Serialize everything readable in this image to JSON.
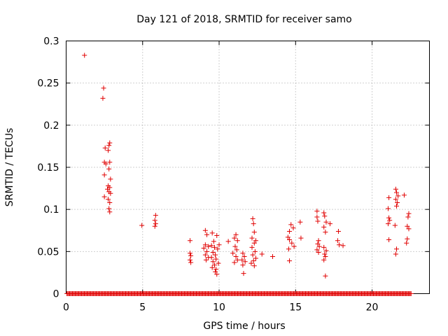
{
  "chart_data": {
    "type": "scatter",
    "title": "Day 121 of 2018, SRMTID for receiver samo",
    "xlabel": "GPS time / hours",
    "ylabel": "SRMTID / TECUs",
    "xlim": [
      0,
      23.75
    ],
    "ylim": [
      0,
      0.3
    ],
    "x_ticks": [
      0,
      5,
      10,
      15,
      20
    ],
    "x_tick_labels": [
      "0",
      "5",
      "10",
      "15",
      "20"
    ],
    "y_ticks": [
      0,
      0.05,
      0.1,
      0.15,
      0.2,
      0.25,
      0.3
    ],
    "y_tick_labels": [
      "0",
      "0.05",
      "0.1",
      "0.15",
      "0.2",
      "0.25",
      "0.3"
    ],
    "grid": true,
    "marker": "plus",
    "color": "#e00000",
    "series": [
      {
        "name": "SRMTID",
        "points": [
          [
            1.2,
            0.283
          ],
          [
            2.45,
            0.244
          ],
          [
            2.4,
            0.232
          ],
          [
            2.85,
            0.179
          ],
          [
            2.8,
            0.176
          ],
          [
            2.55,
            0.173
          ],
          [
            2.75,
            0.17
          ],
          [
            2.5,
            0.156
          ],
          [
            2.85,
            0.156
          ],
          [
            2.6,
            0.154
          ],
          [
            2.8,
            0.148
          ],
          [
            2.5,
            0.141
          ],
          [
            2.9,
            0.136
          ],
          [
            2.75,
            0.128
          ],
          [
            2.85,
            0.126
          ],
          [
            2.7,
            0.124
          ],
          [
            2.8,
            0.121
          ],
          [
            2.9,
            0.119
          ],
          [
            2.5,
            0.115
          ],
          [
            2.75,
            0.112
          ],
          [
            2.85,
            0.108
          ],
          [
            2.8,
            0.101
          ],
          [
            2.85,
            0.097
          ],
          [
            4.95,
            0.081
          ],
          [
            5.85,
            0.093
          ],
          [
            5.8,
            0.087
          ],
          [
            5.85,
            0.083
          ],
          [
            5.8,
            0.08
          ],
          [
            8.1,
            0.063
          ],
          [
            8.1,
            0.048
          ],
          [
            8.15,
            0.045
          ],
          [
            8.1,
            0.04
          ],
          [
            8.15,
            0.037
          ],
          [
            9.1,
            0.075
          ],
          [
            9.2,
            0.07
          ],
          [
            9.1,
            0.058
          ],
          [
            9.3,
            0.056
          ],
          [
            9.0,
            0.054
          ],
          [
            9.2,
            0.05
          ],
          [
            9.1,
            0.046
          ],
          [
            9.3,
            0.043
          ],
          [
            9.15,
            0.04
          ],
          [
            9.55,
            0.072
          ],
          [
            9.85,
            0.069
          ],
          [
            9.5,
            0.057
          ],
          [
            9.7,
            0.055
          ],
          [
            9.9,
            0.053
          ],
          [
            9.6,
            0.049
          ],
          [
            9.75,
            0.046
          ],
          [
            9.5,
            0.043
          ],
          [
            9.8,
            0.041
          ],
          [
            9.6,
            0.038
          ],
          [
            9.95,
            0.036
          ],
          [
            9.7,
            0.034
          ],
          [
            9.55,
            0.031
          ],
          [
            9.8,
            0.029
          ],
          [
            9.75,
            0.026
          ],
          [
            9.85,
            0.023
          ],
          [
            9.65,
            0.062
          ],
          [
            10.0,
            0.058
          ],
          [
            10.6,
            0.062
          ],
          [
            11.0,
            0.066
          ],
          [
            11.1,
            0.07
          ],
          [
            11.2,
            0.063
          ],
          [
            11.05,
            0.056
          ],
          [
            11.15,
            0.052
          ],
          [
            10.9,
            0.048
          ],
          [
            11.1,
            0.044
          ],
          [
            11.2,
            0.04
          ],
          [
            11.0,
            0.037
          ],
          [
            11.55,
            0.048
          ],
          [
            11.65,
            0.044
          ],
          [
            11.5,
            0.04
          ],
          [
            11.7,
            0.038
          ],
          [
            11.55,
            0.034
          ],
          [
            11.6,
            0.024
          ],
          [
            12.2,
            0.089
          ],
          [
            12.25,
            0.083
          ],
          [
            12.3,
            0.073
          ],
          [
            12.15,
            0.066
          ],
          [
            12.4,
            0.063
          ],
          [
            12.3,
            0.06
          ],
          [
            12.15,
            0.055
          ],
          [
            12.35,
            0.05
          ],
          [
            12.2,
            0.046
          ],
          [
            12.4,
            0.042
          ],
          [
            12.25,
            0.039
          ],
          [
            12.1,
            0.036
          ],
          [
            12.3,
            0.033
          ],
          [
            12.8,
            0.047
          ],
          [
            13.5,
            0.044
          ],
          [
            14.5,
            0.067
          ],
          [
            14.6,
            0.074
          ],
          [
            14.7,
            0.082
          ],
          [
            14.85,
            0.078
          ],
          [
            14.6,
            0.064
          ],
          [
            14.75,
            0.06
          ],
          [
            14.9,
            0.056
          ],
          [
            14.55,
            0.053
          ],
          [
            14.6,
            0.039
          ],
          [
            15.3,
            0.085
          ],
          [
            15.35,
            0.066
          ],
          [
            16.4,
            0.098
          ],
          [
            16.4,
            0.091
          ],
          [
            16.45,
            0.086
          ],
          [
            16.5,
            0.063
          ],
          [
            16.45,
            0.059
          ],
          [
            16.55,
            0.056
          ],
          [
            16.4,
            0.052
          ],
          [
            16.5,
            0.049
          ],
          [
            16.85,
            0.096
          ],
          [
            16.9,
            0.092
          ],
          [
            17.0,
            0.085
          ],
          [
            16.85,
            0.079
          ],
          [
            16.95,
            0.073
          ],
          [
            16.85,
            0.055
          ],
          [
            17.0,
            0.051
          ],
          [
            16.9,
            0.047
          ],
          [
            16.95,
            0.044
          ],
          [
            16.85,
            0.04
          ],
          [
            16.95,
            0.021
          ],
          [
            17.25,
            0.083
          ],
          [
            17.8,
            0.074
          ],
          [
            17.75,
            0.063
          ],
          [
            17.85,
            0.058
          ],
          [
            18.1,
            0.057
          ],
          [
            21.1,
            0.114
          ],
          [
            21.05,
            0.101
          ],
          [
            21.1,
            0.09
          ],
          [
            21.15,
            0.087
          ],
          [
            21.05,
            0.083
          ],
          [
            21.1,
            0.064
          ],
          [
            21.5,
            0.081
          ],
          [
            21.55,
            0.124
          ],
          [
            21.6,
            0.12
          ],
          [
            21.7,
            0.116
          ],
          [
            21.55,
            0.112
          ],
          [
            21.65,
            0.108
          ],
          [
            21.6,
            0.104
          ],
          [
            21.6,
            0.053
          ],
          [
            21.55,
            0.047
          ],
          [
            22.1,
            0.117
          ],
          [
            22.4,
            0.095
          ],
          [
            22.35,
            0.091
          ],
          [
            22.3,
            0.08
          ],
          [
            22.4,
            0.077
          ],
          [
            22.3,
            0.065
          ],
          [
            22.25,
            0.06
          ]
        ]
      }
    ],
    "baseline": {
      "name": "zero-values",
      "y": 0,
      "x_start": 0.05,
      "x_end": 22.6,
      "step": 0.06
    }
  }
}
